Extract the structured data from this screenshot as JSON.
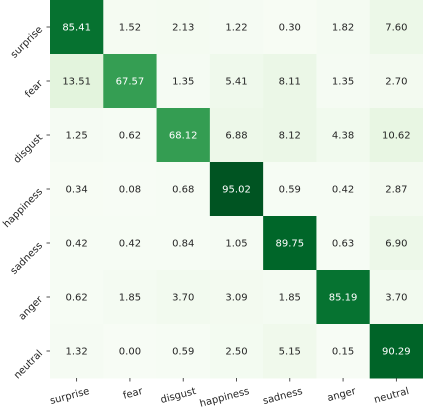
{
  "chart_data": {
    "type": "heatmap",
    "title": "",
    "xlabel": "",
    "ylabel": "",
    "x_categories": [
      "surprise",
      "fear",
      "disgust",
      "happiness",
      "sadness",
      "anger",
      "neutral"
    ],
    "y_categories": [
      "surprise",
      "fear",
      "disgust",
      "happiness",
      "sadness",
      "anger",
      "neutral"
    ],
    "values": [
      [
        85.41,
        1.52,
        2.13,
        1.22,
        0.3,
        1.82,
        7.6
      ],
      [
        13.51,
        67.57,
        1.35,
        5.41,
        8.11,
        1.35,
        2.7
      ],
      [
        1.25,
        0.62,
        68.12,
        6.88,
        8.12,
        4.38,
        10.62
      ],
      [
        0.34,
        0.08,
        0.68,
        95.02,
        0.59,
        0.42,
        2.87
      ],
      [
        0.42,
        0.42,
        0.84,
        1.05,
        89.75,
        0.63,
        6.9
      ],
      [
        0.62,
        1.85,
        3.7,
        3.09,
        1.85,
        85.19,
        3.7
      ],
      [
        1.32,
        0.0,
        0.59,
        2.5,
        5.15,
        0.15,
        90.29
      ]
    ],
    "value_range": [
      0,
      100
    ],
    "colormap": "Greens",
    "colorscale_low": "#f7fcf5",
    "colorscale_high": "#00441b",
    "text_color_light": "#ffffff",
    "text_color_dark": "#262626",
    "grid": false,
    "legend": "none"
  }
}
